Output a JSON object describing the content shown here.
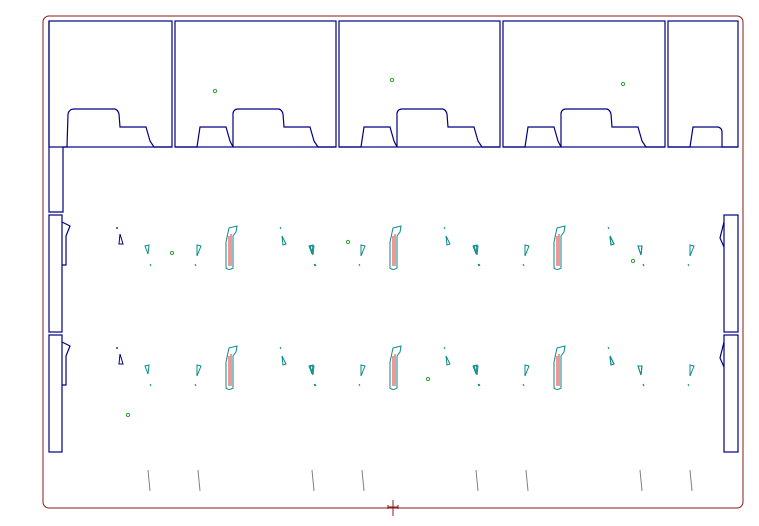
{
  "drawing": {
    "sheet_outline_color": "#8b1a1a",
    "cut_line_color": "#000080",
    "crease_line_color": "#e03030",
    "punch_mark_color": "#0a8a8a",
    "marker_color": "#2ca02c",
    "scoring_line_color": "#808080",
    "center_mark": "center-cross-icon"
  }
}
